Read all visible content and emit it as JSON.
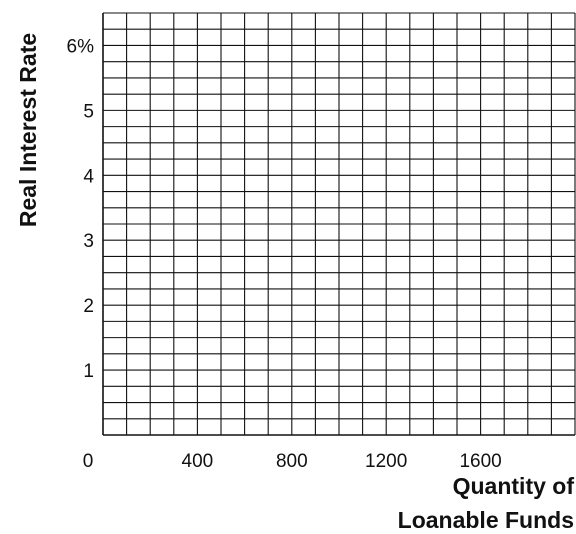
{
  "chart_data": {
    "type": "line",
    "title": "",
    "xlabel_lines": [
      "Quantity of",
      "Loanable Funds"
    ],
    "ylabel": "Real Interest Rate",
    "xlim": [
      0,
      2000
    ],
    "ylim": [
      0,
      6.5
    ],
    "grid": true,
    "x_grid_step": 100,
    "y_grid_step": 0.25,
    "x_ticks": [
      {
        "value": 0,
        "label": "0"
      },
      {
        "value": 400,
        "label": "400"
      },
      {
        "value": 800,
        "label": "800"
      },
      {
        "value": 1200,
        "label": "1200"
      },
      {
        "value": 1600,
        "label": "1600"
      }
    ],
    "y_ticks": [
      {
        "value": 1,
        "label": "1"
      },
      {
        "value": 2,
        "label": "2"
      },
      {
        "value": 3,
        "label": "3"
      },
      {
        "value": 4,
        "label": "4"
      },
      {
        "value": 5,
        "label": "5"
      },
      {
        "value": 6,
        "label": "6%"
      }
    ],
    "series": [],
    "colors": {
      "grid": "#111111",
      "text": "#111111"
    }
  }
}
